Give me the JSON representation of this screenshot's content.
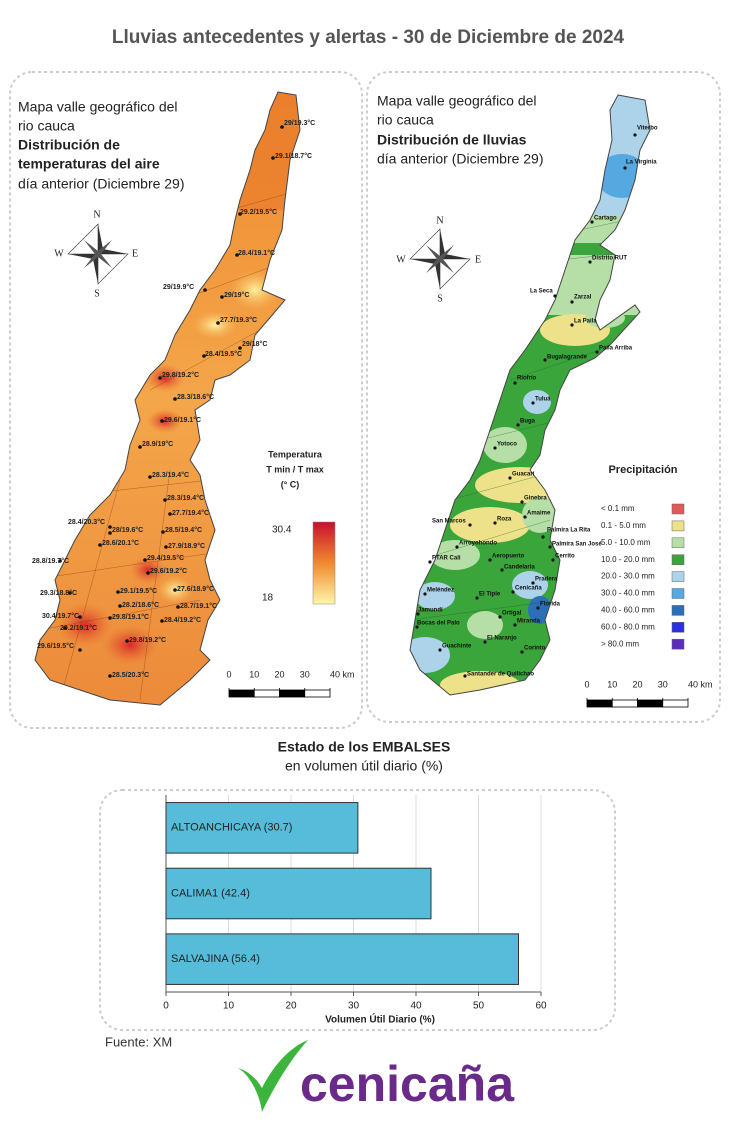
{
  "header": {
    "title": "Lluvias antecedentes y alertas - 30 de Diciembre de 2024"
  },
  "temperature_map": {
    "title": [
      "Mapa valle geográfico del",
      "rio cauca"
    ],
    "heading": [
      "Distribución de",
      "temperaturas del aire"
    ],
    "subtitle": "día anterior (Diciembre 29)",
    "compass": {
      "north": "N",
      "south": "S",
      "east": "E",
      "west": "W"
    },
    "legend": {
      "title": [
        "Temperatura",
        "T min / T max",
        "(° C)"
      ],
      "max": 30.4,
      "min": 18,
      "colors": [
        "#c8102e",
        "#f08a30",
        "#fff6a8"
      ]
    },
    "scale_bar": [
      0,
      10,
      20,
      30,
      {
        "value": 40,
        "label": "40 km"
      }
    ],
    "stations": [
      "29/19.3°C",
      "29.1/18.7°C",
      "29.2/19.5°C",
      "28.4/19.1°C",
      "29/19.9°C",
      "29/19°C",
      "27.7/19.3°C",
      "29/18°C",
      "28.4/19.5°C",
      "29.8/19.2°C",
      "28.3/18.6°C",
      "29.6/19.1°C",
      "28.9/19°C",
      "28.3/19.4°C",
      "28.3/19.4°C",
      "27.7/19.4°C",
      "28.4/20.3°C",
      "28/19.6°C",
      "28.5/19.4°C",
      "28.6/20.1°C",
      "27.9/18.9°C",
      "28.8/19.7°C",
      "29.4/19.5°C",
      "29.6/19.2°C",
      "29.3/18.8°C",
      "29.1/19.5°C",
      "27.6/18.9°C",
      "28.2/18.6°C",
      "28.7/19.1°C",
      "30.4/19.7°C",
      "29.8/19.1°C",
      "28.4/19.2°C",
      "29.2/19.1°C",
      "29.6/19.5°C",
      "29.8/19.2°C",
      "28.5/20.3°C"
    ]
  },
  "rain_map": {
    "title": [
      "Mapa valle geográfico del",
      "rio cauca"
    ],
    "heading": [
      "Distribución de lluvias"
    ],
    "subtitle": "día anterior (Diciembre 29)",
    "compass": {
      "north": "N",
      "south": "S",
      "east": "E",
      "west": "W"
    },
    "legend": {
      "title": "Precipitación",
      "classes": [
        {
          "label": "< 0.1 mm",
          "color": "#e05a5a"
        },
        {
          "label": "0.1 - 5.0 mm",
          "color": "#ede28a"
        },
        {
          "label": "5.0 - 10.0 mm",
          "color": "#b5dfa6"
        },
        {
          "label": "10.0 - 20.0 mm",
          "color": "#3aa53a"
        },
        {
          "label": "20.0 - 30.0 mm",
          "color": "#add3ea"
        },
        {
          "label": "30.0 - 40.0 mm",
          "color": "#55a8e0"
        },
        {
          "label": "40.0 - 60.0 mm",
          "color": "#2a6fb8"
        },
        {
          "label": "60.0 - 80.0 mm",
          "color": "#2b2fe0"
        },
        {
          "label": "> 80.0 mm",
          "color": "#5a2eb8"
        }
      ]
    },
    "scale_bar": [
      0,
      10,
      20,
      30,
      {
        "value": 40,
        "label": "40 km"
      }
    ],
    "stations": [
      "Viterbo",
      "La Virginia",
      "Cartago",
      "Distrito RUT",
      "La Seca",
      "Zarzal",
      "La Paila",
      "Paila Arriba",
      "Bugalagrande",
      "Riofrío",
      "Tuluá",
      "Buga",
      "Yotoco",
      "Guacarí",
      "Ginebra",
      "Amaime",
      "San Marcos",
      "Roza",
      "Palmira La Rita",
      "Arroyohondo",
      "Palmira San José",
      "Cerrito",
      "Aeropuerto",
      "PTAR Cali",
      "Candelaria",
      "Pradera",
      "Cenicaña",
      "Meléndez",
      "El Tiple",
      "Florida",
      "Jamundí",
      "Ortigal",
      "Bocas del Palo",
      "Miranda",
      "Guachinte",
      "El Naranjo",
      "Corinto",
      "Santander de Quilichao"
    ]
  },
  "chart_data": {
    "type": "bar",
    "orientation": "horizontal",
    "title": "Estado de los EMBALSES",
    "subtitle": "en volumen útil diario (%)",
    "values": [
      30.7,
      42.4,
      56.4
    ],
    "value_labels": [
      "ALTOANCHICAYA (30.7)",
      "CALIMA1 (42.4)",
      "SALVAJINA (56.4)"
    ],
    "color": "#56bcd9",
    "xlabel": "Volumen Útil Diario (%)",
    "xlim": [
      0,
      60
    ],
    "xticks": [
      0,
      10,
      20,
      30,
      40,
      50,
      60
    ],
    "grid": true
  },
  "footer": {
    "source": "Fuente: XM",
    "logo": "cenicaña"
  }
}
